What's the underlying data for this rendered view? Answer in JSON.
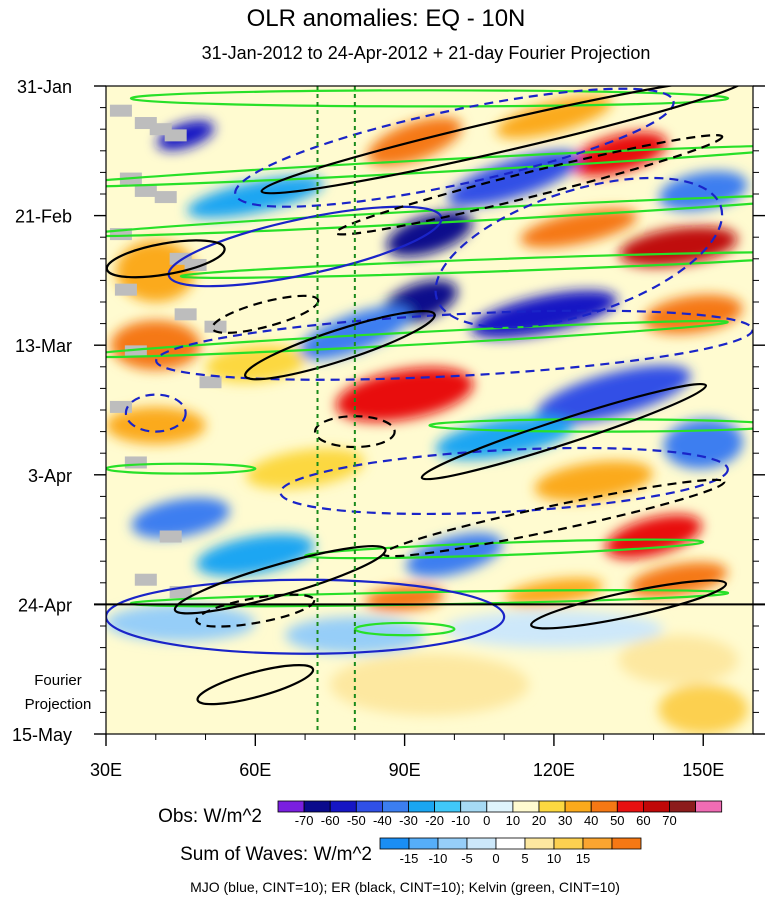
{
  "chart_data": {
    "type": "heatmap",
    "title": "OLR anomalies: EQ - 10N",
    "subtitle": "31-Jan-2012 to 24-Apr-2012 + 21-day Fourier Projection",
    "x_axis": {
      "range": [
        30,
        160
      ],
      "ticks": [
        30,
        60,
        90,
        120,
        150
      ],
      "tick_labels": [
        "30E",
        "60E",
        "90E",
        "120E",
        "150E"
      ]
    },
    "y_axis": {
      "range_days": [
        0,
        105
      ],
      "tick_days": [
        0,
        21,
        42,
        63,
        84,
        105
      ],
      "tick_labels": [
        "31-Jan",
        "21-Feb",
        "13-Mar",
        "3-Apr",
        "24-Apr",
        "15-May"
      ]
    },
    "projection_label_line1": "Fourier",
    "projection_label_line2": "Projection",
    "observation_end_day": 84,
    "reference_longitudes": [
      72.5,
      80
    ],
    "obs_colorbar": {
      "label": "Obs: W/m^2",
      "levels": [
        -70,
        -60,
        -50,
        -40,
        -30,
        -20,
        -10,
        0,
        10,
        20,
        30,
        40,
        50,
        60,
        70
      ],
      "level_labels": [
        "-70",
        "-60",
        "-50",
        "-40",
        "-30",
        "-20",
        "-10",
        "0",
        "10",
        "20",
        "30",
        "40",
        "50",
        "60",
        "70"
      ],
      "colors": [
        "#7a1fe0",
        "#0a0a8c",
        "#1616c4",
        "#3050e6",
        "#3c7ef0",
        "#1aa6f2",
        "#40c8f8",
        "#a6daf4",
        "#dff4fc",
        "#fffbd0",
        "#fcd840",
        "#fbaa1c",
        "#f57814",
        "#e81010",
        "#c00808",
        "#8c1c1c",
        "#f06cb4"
      ]
    },
    "waves_colorbar": {
      "label": "Sum of Waves: W/m^2",
      "levels": [
        -15,
        -10,
        -5,
        0,
        5,
        10,
        15
      ],
      "level_labels": [
        "-15",
        "-10",
        "-5",
        "0",
        "5",
        "10",
        "15"
      ],
      "colors": [
        "#1a8ef4",
        "#56aef8",
        "#96cef8",
        "#cde8fa",
        "#ffffff",
        "#fde8a0",
        "#fcd050",
        "#fba530",
        "#f57814"
      ]
    },
    "footer_note": "MJO (blue, CINT=10); ER (black, CINT=10); Kelvin (green, CINT=10)",
    "colors": {
      "mjo": "#1a24c8",
      "er": "#000000",
      "kelvin": "#28e028",
      "reference_lines": "#1a8a1a",
      "missing": "#bdbdbd"
    },
    "features": {
      "obs_anomaly_blobs": [
        {
          "lon": 46,
          "day": 8,
          "value": -60,
          "rlon": 6,
          "rday": 2,
          "angle": -18
        },
        {
          "lon": 92,
          "day": 9,
          "value": 40,
          "rlon": 10,
          "rday": 3,
          "angle": -20
        },
        {
          "lon": 120,
          "day": 5,
          "value": 30,
          "rlon": 12,
          "rday": 2.5,
          "angle": -15
        },
        {
          "lon": 133,
          "day": 11,
          "value": 50,
          "rlon": 10,
          "rday": 3,
          "angle": -15
        },
        {
          "lon": 112,
          "day": 15,
          "value": -50,
          "rlon": 14,
          "rday": 3,
          "angle": -18
        },
        {
          "lon": 150,
          "day": 17,
          "value": -40,
          "rlon": 9,
          "rday": 3,
          "angle": -10
        },
        {
          "lon": 60,
          "day": 18,
          "value": -30,
          "rlon": 14,
          "rday": 2.5,
          "angle": -12
        },
        {
          "lon": 95,
          "day": 24,
          "value": -70,
          "rlon": 9,
          "rday": 3,
          "angle": -18
        },
        {
          "lon": 125,
          "day": 23,
          "value": 40,
          "rlon": 12,
          "rday": 2.5,
          "angle": -12
        },
        {
          "lon": 145,
          "day": 26,
          "value": 60,
          "rlon": 12,
          "rday": 3,
          "angle": -8
        },
        {
          "lon": 40,
          "day": 30,
          "value": 30,
          "rlon": 8,
          "rday": 5,
          "angle": 0
        },
        {
          "lon": 93,
          "day": 35,
          "value": -70,
          "rlon": 8,
          "rday": 3,
          "angle": -20
        },
        {
          "lon": 118,
          "day": 37,
          "value": -60,
          "rlon": 15,
          "rday": 3,
          "angle": -12
        },
        {
          "lon": 148,
          "day": 37,
          "value": 40,
          "rlon": 10,
          "rday": 3,
          "angle": -8
        },
        {
          "lon": 80,
          "day": 40,
          "value": -40,
          "rlon": 12,
          "rday": 3,
          "angle": -20
        },
        {
          "lon": 40,
          "day": 42,
          "value": 40,
          "rlon": 9,
          "rday": 4,
          "angle": 0
        },
        {
          "lon": 60,
          "day": 45,
          "value": 20,
          "rlon": 10,
          "rday": 3,
          "angle": -5
        },
        {
          "lon": 90,
          "day": 50,
          "value": 50,
          "rlon": 14,
          "rday": 4,
          "angle": -10
        },
        {
          "lon": 132,
          "day": 50,
          "value": -50,
          "rlon": 16,
          "rday": 3.5,
          "angle": -15
        },
        {
          "lon": 40,
          "day": 55,
          "value": 30,
          "rlon": 10,
          "rday": 3,
          "angle": 0
        },
        {
          "lon": 110,
          "day": 57,
          "value": -30,
          "rlon": 14,
          "rday": 3,
          "angle": -10
        },
        {
          "lon": 150,
          "day": 58,
          "value": -40,
          "rlon": 8,
          "rday": 4,
          "angle": -5
        },
        {
          "lon": 70,
          "day": 62,
          "value": 20,
          "rlon": 12,
          "rday": 3,
          "angle": -8
        },
        {
          "lon": 128,
          "day": 64,
          "value": 30,
          "rlon": 12,
          "rday": 3,
          "angle": -8
        },
        {
          "lon": 45,
          "day": 70,
          "value": -40,
          "rlon": 10,
          "rday": 3,
          "angle": -10
        },
        {
          "lon": 140,
          "day": 73,
          "value": 50,
          "rlon": 10,
          "rday": 3,
          "angle": -15
        },
        {
          "lon": 60,
          "day": 76,
          "value": -30,
          "rlon": 12,
          "rday": 3,
          "angle": -10
        },
        {
          "lon": 100,
          "day": 76,
          "value": -40,
          "rlon": 10,
          "rday": 3,
          "angle": -15
        },
        {
          "lon": 145,
          "day": 80,
          "value": 40,
          "rlon": 10,
          "rday": 2.5,
          "angle": -10
        },
        {
          "lon": 90,
          "day": 83,
          "value": 40,
          "rlon": 8,
          "rday": 2,
          "angle": -5
        },
        {
          "lon": 120,
          "day": 82,
          "value": 30,
          "rlon": 10,
          "rday": 2,
          "angle": -8
        }
      ],
      "projection_blobs": [
        {
          "lon": 45,
          "day": 87,
          "value": -10,
          "rlon": 15,
          "rday": 3
        },
        {
          "lon": 80,
          "day": 89,
          "value": -10,
          "rlon": 14,
          "rday": 3
        },
        {
          "lon": 120,
          "day": 88,
          "value": -5,
          "rlon": 22,
          "rday": 3
        },
        {
          "lon": 145,
          "day": 93,
          "value": 5,
          "rlon": 12,
          "rday": 4
        },
        {
          "lon": 95,
          "day": 97,
          "value": 5,
          "rlon": 20,
          "rday": 5
        },
        {
          "lon": 150,
          "day": 101,
          "value": 10,
          "rlon": 9,
          "rday": 4
        }
      ],
      "mjo_contours": [
        {
          "lon": 100,
          "day": 10,
          "rlon": 45,
          "rday": 6,
          "angle": -12,
          "dashed": true
        },
        {
          "lon": 70,
          "day": 26,
          "rlon": 28,
          "rday": 4.5,
          "angle": -12,
          "dashed": false
        },
        {
          "lon": 125,
          "day": 27,
          "rlon": 30,
          "rday": 10,
          "angle": -18,
          "dashed": true
        },
        {
          "lon": 100,
          "day": 42,
          "rlon": 60,
          "rday": 5,
          "angle": -3,
          "dashed": true
        },
        {
          "lon": 40,
          "day": 53,
          "rlon": 6,
          "rday": 3,
          "angle": 0,
          "dashed": true
        },
        {
          "lon": 110,
          "day": 64,
          "rlon": 45,
          "rday": 5,
          "angle": -3,
          "dashed": true
        },
        {
          "lon": 70,
          "day": 86,
          "rlon": 40,
          "rday": 6,
          "angle": 0,
          "dashed": false
        }
      ],
      "er_contours": [
        {
          "lon": 110,
          "day": 8,
          "rlon": 50,
          "rday": 2.5,
          "angle": -13,
          "dashed": false
        },
        {
          "lon": 115,
          "day": 16,
          "rlon": 40,
          "rday": 2,
          "angle": -14,
          "dashed": true
        },
        {
          "lon": 42,
          "day": 28,
          "rlon": 12,
          "rday": 2.5,
          "angle": -10,
          "dashed": false
        },
        {
          "lon": 77,
          "day": 42,
          "rlon": 20,
          "rday": 2.5,
          "angle": -18,
          "dashed": false
        },
        {
          "lon": 62,
          "day": 37,
          "rlon": 11,
          "rday": 2,
          "angle": -15,
          "dashed": true
        },
        {
          "lon": 80,
          "day": 56,
          "rlon": 8,
          "rday": 2.5,
          "angle": 0,
          "dashed": true
        },
        {
          "lon": 122,
          "day": 56,
          "rlon": 30,
          "rday": 2,
          "angle": -18,
          "dashed": false
        },
        {
          "lon": 120,
          "day": 70,
          "rlon": 35,
          "rday": 2,
          "angle": -12,
          "dashed": true
        },
        {
          "lon": 65,
          "day": 80,
          "rlon": 22,
          "rday": 2.5,
          "angle": -16,
          "dashed": false
        },
        {
          "lon": 60,
          "day": 85,
          "rlon": 12,
          "rday": 2,
          "angle": -10,
          "dashed": true
        },
        {
          "lon": 135,
          "day": 84,
          "rlon": 20,
          "rday": 2,
          "angle": -12,
          "dashed": false
        },
        {
          "lon": 60,
          "day": 97,
          "rlon": 12,
          "rday": 2,
          "angle": -15,
          "dashed": false
        }
      ],
      "kelvin_contours": [
        {
          "lon": 95,
          "day": 2,
          "rlon": 60,
          "rday": 1.3,
          "angle": 0,
          "dashed": false
        },
        {
          "lon": 95,
          "day": 13,
          "rlon": 75,
          "rday": 1,
          "angle": -3,
          "dashed": false
        },
        {
          "lon": 100,
          "day": 21,
          "rlon": 75,
          "rday": 1,
          "angle": -3,
          "dashed": false
        },
        {
          "lon": 110,
          "day": 29,
          "rlon": 65,
          "rday": 1,
          "angle": -2,
          "dashed": false
        },
        {
          "lon": 90,
          "day": 41,
          "rlon": 65,
          "rday": 1,
          "angle": -3,
          "dashed": false
        },
        {
          "lon": 130,
          "day": 55,
          "rlon": 35,
          "rday": 1,
          "angle": 0,
          "dashed": false
        },
        {
          "lon": 45,
          "day": 62,
          "rlon": 15,
          "rday": 0.8,
          "angle": 0,
          "dashed": false
        },
        {
          "lon": 110,
          "day": 75,
          "rlon": 40,
          "rday": 1,
          "angle": -2,
          "dashed": false
        },
        {
          "lon": 95,
          "day": 83,
          "rlon": 60,
          "rday": 1,
          "angle": -1,
          "dashed": false
        },
        {
          "lon": 90,
          "day": 88,
          "rlon": 10,
          "rday": 1,
          "angle": 0,
          "dashed": false
        }
      ],
      "missing_data_cells": [
        {
          "lon": 33,
          "day": 4
        },
        {
          "lon": 38,
          "day": 6
        },
        {
          "lon": 41,
          "day": 7
        },
        {
          "lon": 44,
          "day": 8
        },
        {
          "lon": 35,
          "day": 15
        },
        {
          "lon": 38,
          "day": 17
        },
        {
          "lon": 42,
          "day": 18
        },
        {
          "lon": 33,
          "day": 24
        },
        {
          "lon": 45,
          "day": 28
        },
        {
          "lon": 48,
          "day": 29
        },
        {
          "lon": 34,
          "day": 33
        },
        {
          "lon": 46,
          "day": 37
        },
        {
          "lon": 52,
          "day": 39
        },
        {
          "lon": 36,
          "day": 43
        },
        {
          "lon": 51,
          "day": 48
        },
        {
          "lon": 33,
          "day": 52
        },
        {
          "lon": 36,
          "day": 61
        },
        {
          "lon": 43,
          "day": 73
        },
        {
          "lon": 38,
          "day": 80
        },
        {
          "lon": 45,
          "day": 82
        }
      ]
    }
  }
}
